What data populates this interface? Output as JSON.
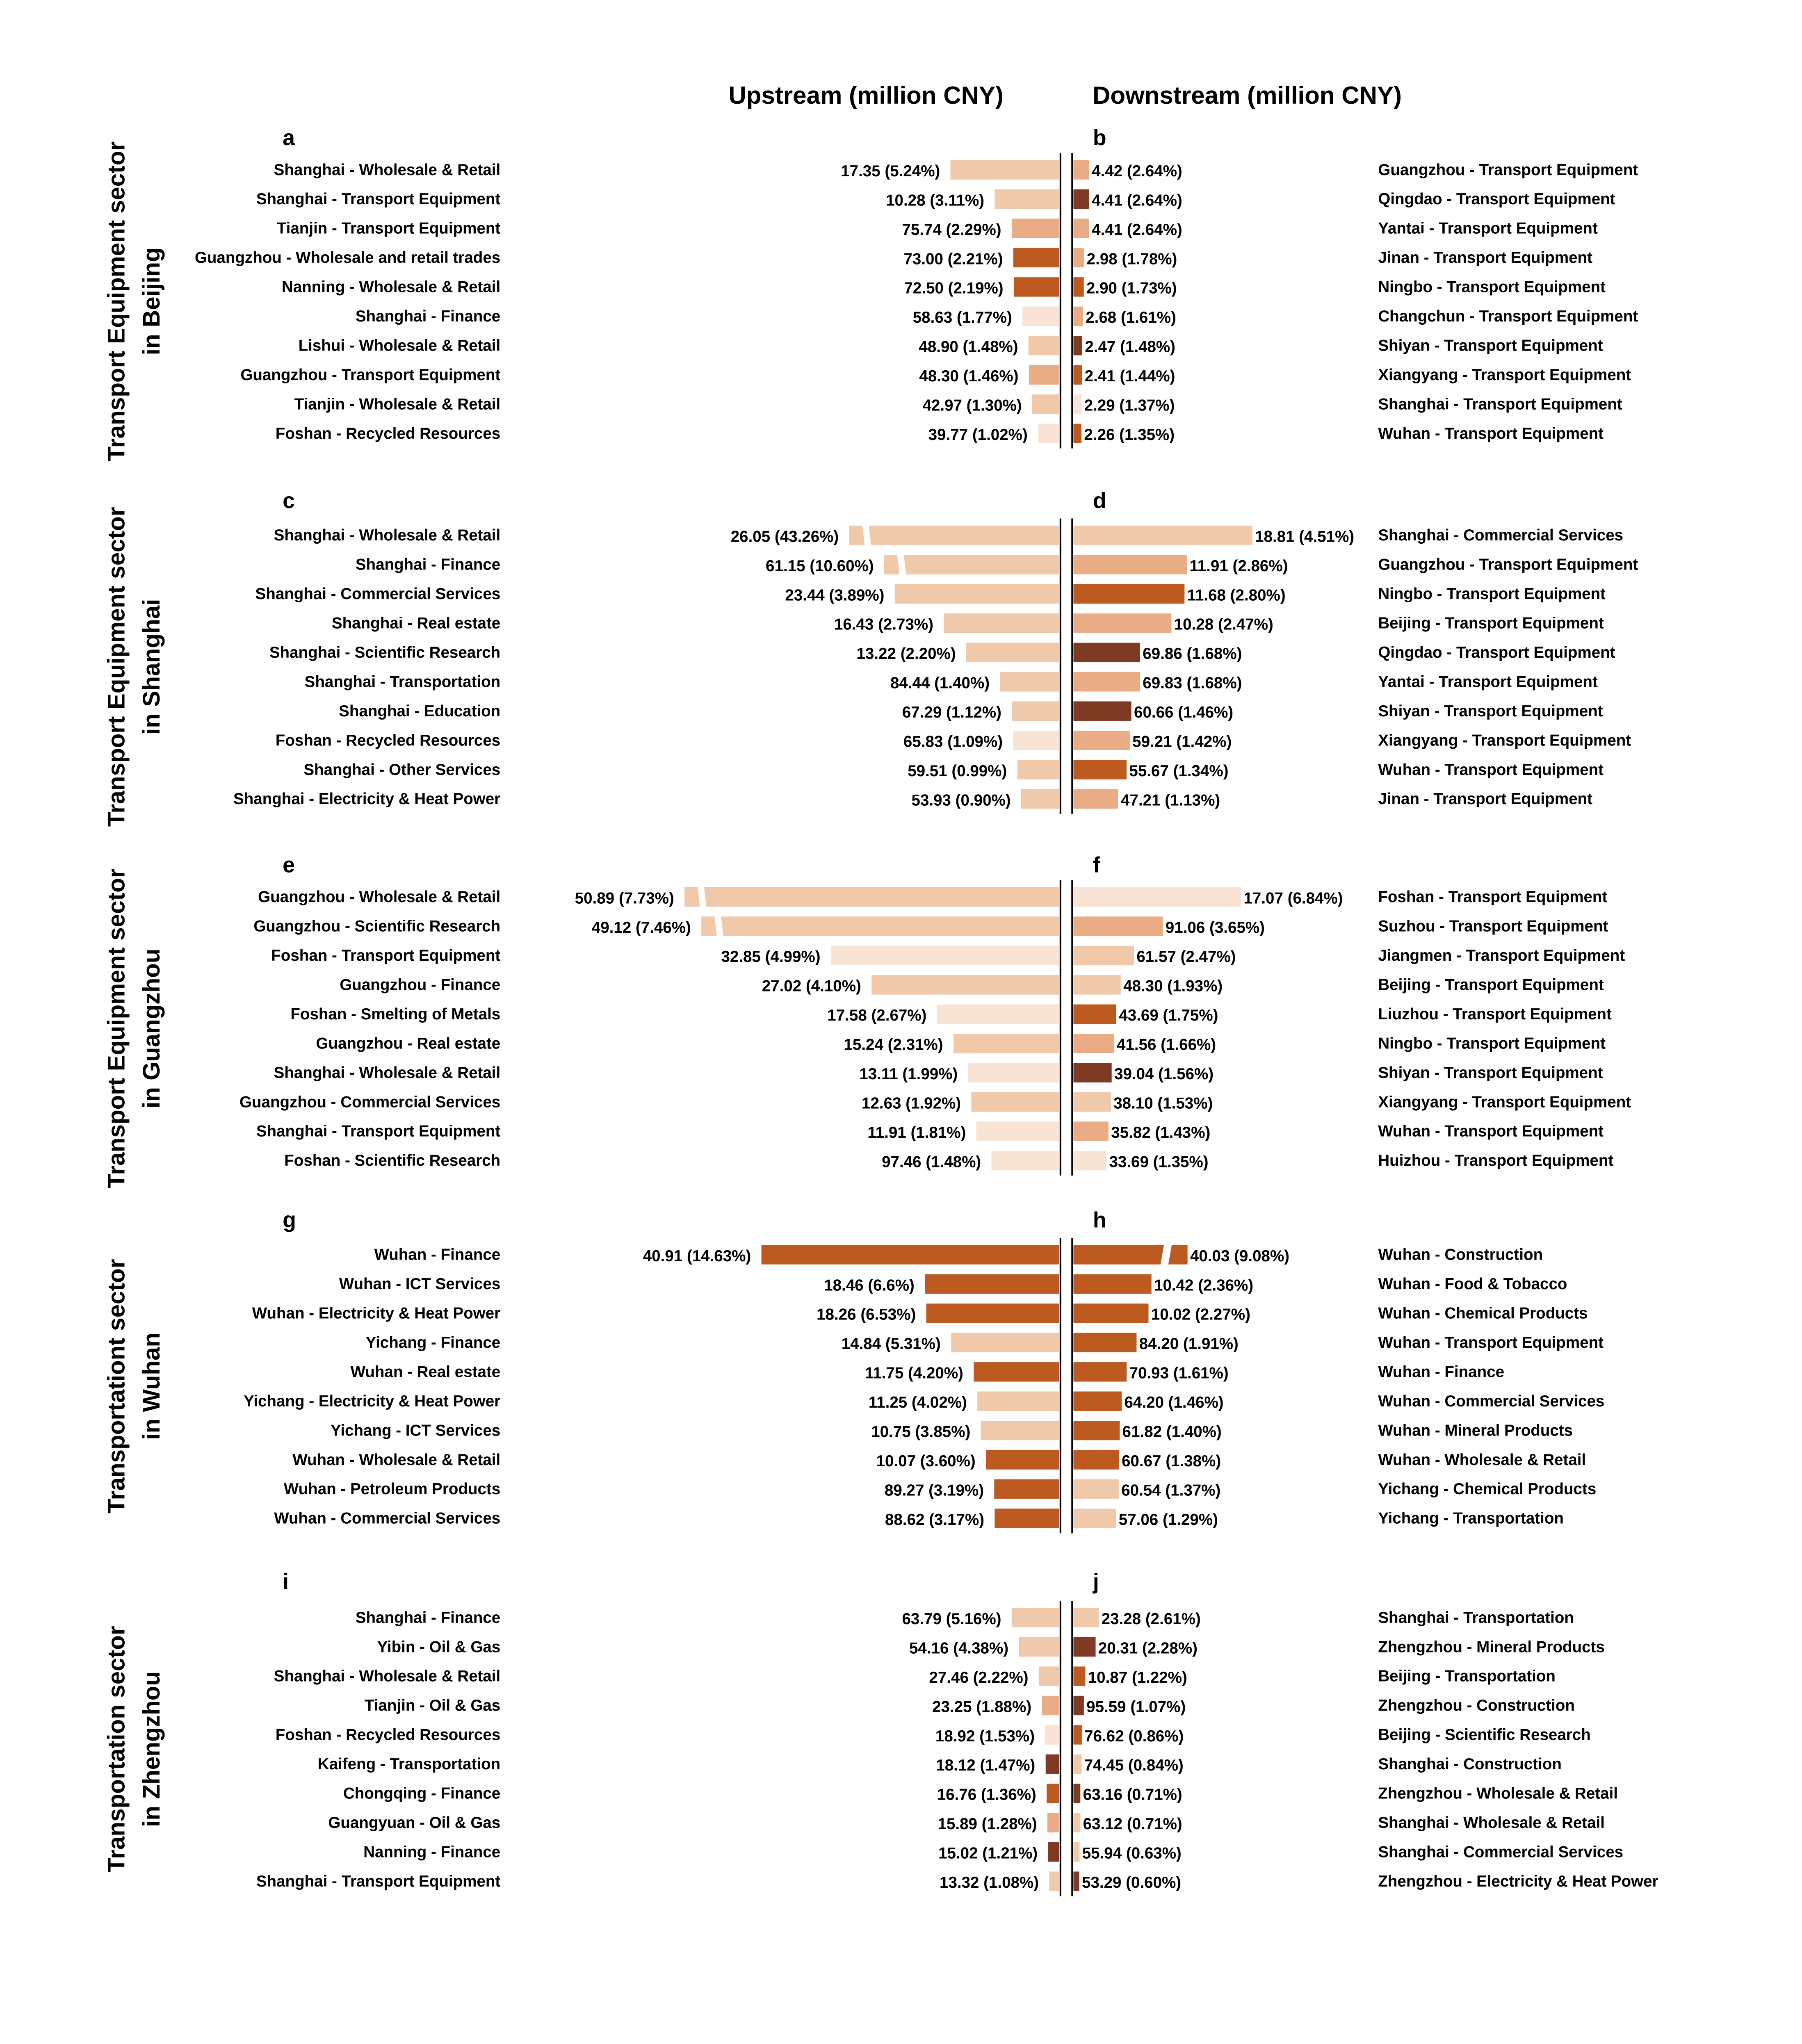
{
  "chart_data": {
    "type": "bar",
    "subtype": "diverging-horizontal-bar",
    "headers": {
      "upstream": "Upstream (million CNY)",
      "downstream": "Downstream (million CNY)"
    },
    "color_palette": {
      "very_light": "#F8E3D4",
      "light": "#F0C8AA",
      "medium": "#EAAC85",
      "orange": "#BC5A20",
      "brown": "#7E3A22"
    },
    "panels": [
      {
        "title": "Transport Equipment sector in Beijing",
        "title_lines": [
          "Transport Equipment sector",
          "in Beijing"
        ],
        "upstream": {
          "label": "a",
          "rows": [
            {
              "name": "Shanghai - Wholesale & Retail",
              "value": "17.35",
              "share": 5.24,
              "color": "light"
            },
            {
              "name": "Shanghai - Transport Equipment",
              "value": "10.28",
              "share": 3.11,
              "color": "light"
            },
            {
              "name": "Tianjin - Transport Equipment",
              "value": "75.74",
              "share": 2.29,
              "color": "medium"
            },
            {
              "name": "Guangzhou - Wholesale and retail trades",
              "value": "73.00",
              "share": 2.21,
              "color": "orange"
            },
            {
              "name": "Nanning - Wholesale & Retail",
              "value": "72.50",
              "share": 2.19,
              "color": "orange"
            },
            {
              "name": "Shanghai - Finance",
              "value": "58.63",
              "share": 1.77,
              "color": "very_light"
            },
            {
              "name": "Lishui - Wholesale & Retail",
              "value": "48.90",
              "share": 1.48,
              "color": "light"
            },
            {
              "name": "Guangzhou - Transport Equipment",
              "value": "48.30",
              "share": 1.46,
              "color": "medium"
            },
            {
              "name": "Tianjin - Wholesale & Retail",
              "value": "42.97",
              "share": 1.3,
              "color": "light"
            },
            {
              "name": "Foshan - Recycled Resources",
              "value": "39.77",
              "share": 1.02,
              "color": "very_light"
            }
          ]
        },
        "downstream": {
          "label": "b",
          "rows": [
            {
              "name": "Guangzhou - Transport Equipment",
              "value": "4.42",
              "share": 2.64,
              "color": "medium"
            },
            {
              "name": "Qingdao - Transport Equipment",
              "value": "4.41",
              "share": 2.64,
              "color": "brown"
            },
            {
              "name": "Yantai - Transport Equipment",
              "value": "4.41",
              "share": 2.64,
              "color": "medium"
            },
            {
              "name": "Jinan - Transport Equipment",
              "value": "2.98",
              "share": 1.78,
              "color": "medium"
            },
            {
              "name": "Ningbo - Transport Equipment",
              "value": "2.90",
              "share": 1.73,
              "color": "orange"
            },
            {
              "name": "Changchun - Transport Equipment",
              "value": "2.68",
              "share": 1.61,
              "color": "medium"
            },
            {
              "name": "Shiyan - Transport Equipment",
              "value": "2.47",
              "share": 1.48,
              "color": "brown"
            },
            {
              "name": "Xiangyang - Transport Equipment",
              "value": "2.41",
              "share": 1.44,
              "color": "orange"
            },
            {
              "name": "Shanghai - Transport Equipment",
              "value": "2.29",
              "share": 1.37,
              "color": "very_light"
            },
            {
              "name": "Wuhan - Transport Equipment",
              "value": "2.26",
              "share": 1.35,
              "color": "orange"
            }
          ]
        }
      },
      {
        "title": "Transport Equipment sector in Shanghai",
        "title_lines": [
          "Transport Equipment sector",
          "in Shanghai"
        ],
        "upstream": {
          "label": "c",
          "rows": [
            {
              "name": "Shanghai - Wholesale & Retail",
              "value": "26.05",
              "share": 43.26,
              "color": "light",
              "broken": true
            },
            {
              "name": "Shanghai - Finance",
              "value": "61.15",
              "share": 10.6,
              "color": "light",
              "broken": true
            },
            {
              "name": "Shanghai - Commercial Services",
              "value": "23.44",
              "share": 3.89,
              "color": "light"
            },
            {
              "name": "Shanghai - Real estate",
              "value": "16.43",
              "share": 2.73,
              "color": "light"
            },
            {
              "name": "Shanghai - Scientific Research",
              "value": "13.22",
              "share": 2.2,
              "color": "light"
            },
            {
              "name": "Shanghai - Transportation",
              "value": "84.44",
              "share": 1.4,
              "color": "light"
            },
            {
              "name": "Shanghai - Education",
              "value": "67.29",
              "share": 1.12,
              "color": "light"
            },
            {
              "name": "Foshan - Recycled Resources",
              "value": "65.83",
              "share": 1.09,
              "color": "very_light"
            },
            {
              "name": "Shanghai - Other Services",
              "value": "59.51",
              "share": 0.99,
              "color": "light"
            },
            {
              "name": "Shanghai - Electricity & Heat Power",
              "value": "53.93",
              "share": 0.9,
              "color": "light"
            }
          ]
        },
        "downstream": {
          "label": "d",
          "rows": [
            {
              "name": "Shanghai - Commercial Services",
              "value": "18.81",
              "share": 4.51,
              "color": "light"
            },
            {
              "name": "Guangzhou - Transport Equipment",
              "value": "11.91",
              "share": 2.86,
              "color": "medium"
            },
            {
              "name": "Ningbo - Transport Equipment",
              "value": "11.68",
              "share": 2.8,
              "color": "orange"
            },
            {
              "name": "Beijing - Transport Equipment",
              "value": "10.28",
              "share": 2.47,
              "color": "medium"
            },
            {
              "name": "Qingdao - Transport Equipment",
              "value": "69.86",
              "share": 1.68,
              "color": "brown"
            },
            {
              "name": "Yantai - Transport Equipment",
              "value": "69.83",
              "share": 1.68,
              "color": "medium"
            },
            {
              "name": "Shiyan - Transport Equipment",
              "value": "60.66",
              "share": 1.46,
              "color": "brown"
            },
            {
              "name": "Xiangyang - Transport Equipment",
              "value": "59.21",
              "share": 1.42,
              "color": "medium"
            },
            {
              "name": "Wuhan - Transport Equipment",
              "value": "55.67",
              "share": 1.34,
              "color": "orange"
            },
            {
              "name": "Jinan - Transport Equipment",
              "value": "47.21",
              "share": 1.13,
              "color": "medium"
            }
          ]
        }
      },
      {
        "title": "Transport Equipment sector in Guangzhou",
        "title_lines": [
          "Transport Equipment sector",
          "in Guangzhou"
        ],
        "upstream": {
          "label": "e",
          "rows": [
            {
              "name": "Guangzhou - Wholesale & Retail",
              "value": "50.89",
              "share": 7.73,
              "color": "light",
              "broken": true
            },
            {
              "name": "Guangzhou - Scientific Research",
              "value": "49.12",
              "share": 7.46,
              "color": "light",
              "broken": true
            },
            {
              "name": "Foshan - Transport Equipment",
              "value": "32.85",
              "share": 4.99,
              "color": "very_light"
            },
            {
              "name": "Guangzhou - Finance",
              "value": "27.02",
              "share": 4.1,
              "color": "light"
            },
            {
              "name": "Foshan - Smelting of Metals",
              "value": "17.58",
              "share": 2.67,
              "color": "very_light"
            },
            {
              "name": "Guangzhou - Real estate",
              "value": "15.24",
              "share": 2.31,
              "color": "light"
            },
            {
              "name": "Shanghai - Wholesale & Retail",
              "value": "13.11",
              "share": 1.99,
              "color": "very_light"
            },
            {
              "name": "Guangzhou - Commercial Services",
              "value": "12.63",
              "share": 1.92,
              "color": "light"
            },
            {
              "name": "Shanghai - Transport Equipment",
              "value": "11.91",
              "share": 1.81,
              "color": "very_light"
            },
            {
              "name": "Foshan - Scientific Research",
              "value": "97.46",
              "share": 1.48,
              "color": "very_light"
            }
          ]
        },
        "downstream": {
          "label": "f",
          "rows": [
            {
              "name": "Foshan - Transport Equipment",
              "value": "17.07",
              "share": 6.84,
              "color": "very_light"
            },
            {
              "name": "Suzhou - Transport Equipment",
              "value": "91.06",
              "share": 3.65,
              "color": "medium"
            },
            {
              "name": "Jiangmen - Transport Equipment",
              "value": "61.57",
              "share": 2.47,
              "color": "light"
            },
            {
              "name": "Beijing - Transport Equipment",
              "value": "48.30",
              "share": 1.93,
              "color": "light"
            },
            {
              "name": "Liuzhou - Transport Equipment",
              "value": "43.69",
              "share": 1.75,
              "color": "orange"
            },
            {
              "name": "Ningbo - Transport Equipment",
              "value": "41.56",
              "share": 1.66,
              "color": "medium"
            },
            {
              "name": "Shiyan - Transport Equipment",
              "value": "39.04",
              "share": 1.56,
              "color": "brown"
            },
            {
              "name": "Xiangyang - Transport Equipment",
              "value": "38.10",
              "share": 1.53,
              "color": "light"
            },
            {
              "name": "Wuhan - Transport Equipment",
              "value": "35.82",
              "share": 1.43,
              "color": "medium"
            },
            {
              "name": "Huizhou - Transport Equipment",
              "value": "33.69",
              "share": 1.35,
              "color": "very_light"
            }
          ]
        }
      },
      {
        "title": "Transportationt sector in Wuhan",
        "title_lines": [
          "Transportationt sector",
          "in Wuhan"
        ],
        "upstream": {
          "label": "g",
          "rows": [
            {
              "name": "Wuhan - Finance",
              "value": "40.91",
              "share": 14.63,
              "color": "orange"
            },
            {
              "name": "Wuhan - ICT Services",
              "value": "18.46",
              "share": 6.6,
              "share_text": "6.6",
              "color": "orange"
            },
            {
              "name": "Wuhan - Electricity & Heat Power",
              "value": "18.26",
              "share": 6.53,
              "color": "orange"
            },
            {
              "name": "Yichang - Finance",
              "value": "14.84",
              "share": 5.31,
              "color": "light"
            },
            {
              "name": "Wuhan - Real estate",
              "value": "11.75",
              "share": 4.2,
              "color": "orange"
            },
            {
              "name": "Yichang - Electricity & Heat Power",
              "value": "11.25",
              "share": 4.02,
              "color": "light"
            },
            {
              "name": "Yichang - ICT Services",
              "value": "10.75",
              "share": 3.85,
              "color": "light"
            },
            {
              "name": "Wuhan - Wholesale & Retail",
              "value": "10.07",
              "share": 3.6,
              "color": "orange"
            },
            {
              "name": "Wuhan - Petroleum Products",
              "value": "89.27",
              "share": 3.19,
              "color": "orange"
            },
            {
              "name": "Wuhan - Commercial Services",
              "value": "88.62",
              "share": 3.17,
              "color": "orange"
            }
          ]
        },
        "downstream": {
          "label": "h",
          "rows": [
            {
              "name": "Wuhan - Construction",
              "value": "40.03",
              "share": 9.08,
              "color": "orange",
              "broken": true
            },
            {
              "name": "Wuhan - Food & Tobacco",
              "value": "10.42",
              "share": 2.36,
              "color": "orange"
            },
            {
              "name": "Wuhan - Chemical Products",
              "value": "10.02",
              "share": 2.27,
              "color": "orange"
            },
            {
              "name": "Wuhan - Transport Equipment",
              "value": "84.20",
              "share": 1.91,
              "color": "orange"
            },
            {
              "name": "Wuhan - Finance",
              "value": "70.93",
              "share": 1.61,
              "color": "orange"
            },
            {
              "name": "Wuhan - Commercial Services",
              "value": "64.20",
              "share": 1.46,
              "color": "orange"
            },
            {
              "name": "Wuhan - Mineral Products",
              "value": "61.82",
              "share": 1.4,
              "color": "orange"
            },
            {
              "name": "Wuhan - Wholesale & Retail",
              "value": "60.67",
              "share": 1.38,
              "color": "orange"
            },
            {
              "name": "Yichang - Chemical Products",
              "value": "60.54",
              "share": 1.37,
              "color": "light"
            },
            {
              "name": "Yichang - Transportation",
              "value": "57.06",
              "share": 1.29,
              "color": "light"
            }
          ]
        }
      },
      {
        "title": "Transportation sector in Zhengzhou",
        "title_lines": [
          "Transportation sector",
          "in Zhengzhou"
        ],
        "upstream": {
          "label": "i",
          "rows": [
            {
              "name": "Shanghai - Finance",
              "value": "63.79",
              "share": 5.16,
              "color": "light"
            },
            {
              "name": "Yibin - Oil & Gas",
              "value": "54.16",
              "share": 4.38,
              "color": "light"
            },
            {
              "name": "Shanghai - Wholesale & Retail",
              "value": "27.46",
              "share": 2.22,
              "color": "light"
            },
            {
              "name": "Tianjin - Oil & Gas",
              "value": "23.25",
              "share": 1.88,
              "color": "medium"
            },
            {
              "name": "Foshan - Recycled Resources",
              "value": "18.92",
              "share": 1.53,
              "color": "very_light"
            },
            {
              "name": "Kaifeng - Transportation",
              "value": "18.12",
              "share": 1.47,
              "color": "brown"
            },
            {
              "name": "Chongqing - Finance",
              "value": "16.76",
              "share": 1.36,
              "color": "orange"
            },
            {
              "name": "Guangyuan - Oil & Gas",
              "value": "15.89",
              "share": 1.28,
              "color": "medium"
            },
            {
              "name": "Nanning - Finance",
              "value": "15.02",
              "share": 1.21,
              "color": "brown"
            },
            {
              "name": "Shanghai - Transport Equipment",
              "value": "13.32",
              "share": 1.08,
              "color": "light"
            }
          ]
        },
        "downstream": {
          "label": "j",
          "rows": [
            {
              "name": "Shanghai - Transportation",
              "value": "23.28",
              "share": 2.61,
              "color": "light"
            },
            {
              "name": "Zhengzhou - Mineral Products",
              "value": "20.31",
              "share": 2.28,
              "color": "brown"
            },
            {
              "name": "Beijing - Transportation",
              "value": "10.87",
              "share": 1.22,
              "color": "orange"
            },
            {
              "name": "Zhengzhou - Construction",
              "value": "95.59",
              "share": 1.07,
              "color": "brown"
            },
            {
              "name": "Beijing - Scientific Research",
              "value": "76.62",
              "share": 0.86,
              "color": "orange"
            },
            {
              "name": "Shanghai - Construction",
              "value": "74.45",
              "share": 0.84,
              "color": "light"
            },
            {
              "name": "Zhengzhou - Wholesale & Retail",
              "value": "63.16",
              "share": 0.71,
              "color": "brown"
            },
            {
              "name": "Shanghai - Wholesale & Retail",
              "value": "63.12",
              "share": 0.71,
              "color": "light"
            },
            {
              "name": "Shanghai - Commercial Services",
              "value": "55.94",
              "share": 0.63,
              "color": "light"
            },
            {
              "name": "Zhengzhou - Electricity & Heat Power",
              "value": "53.29",
              "share": 0.6,
              "color": "brown"
            }
          ]
        }
      }
    ]
  }
}
